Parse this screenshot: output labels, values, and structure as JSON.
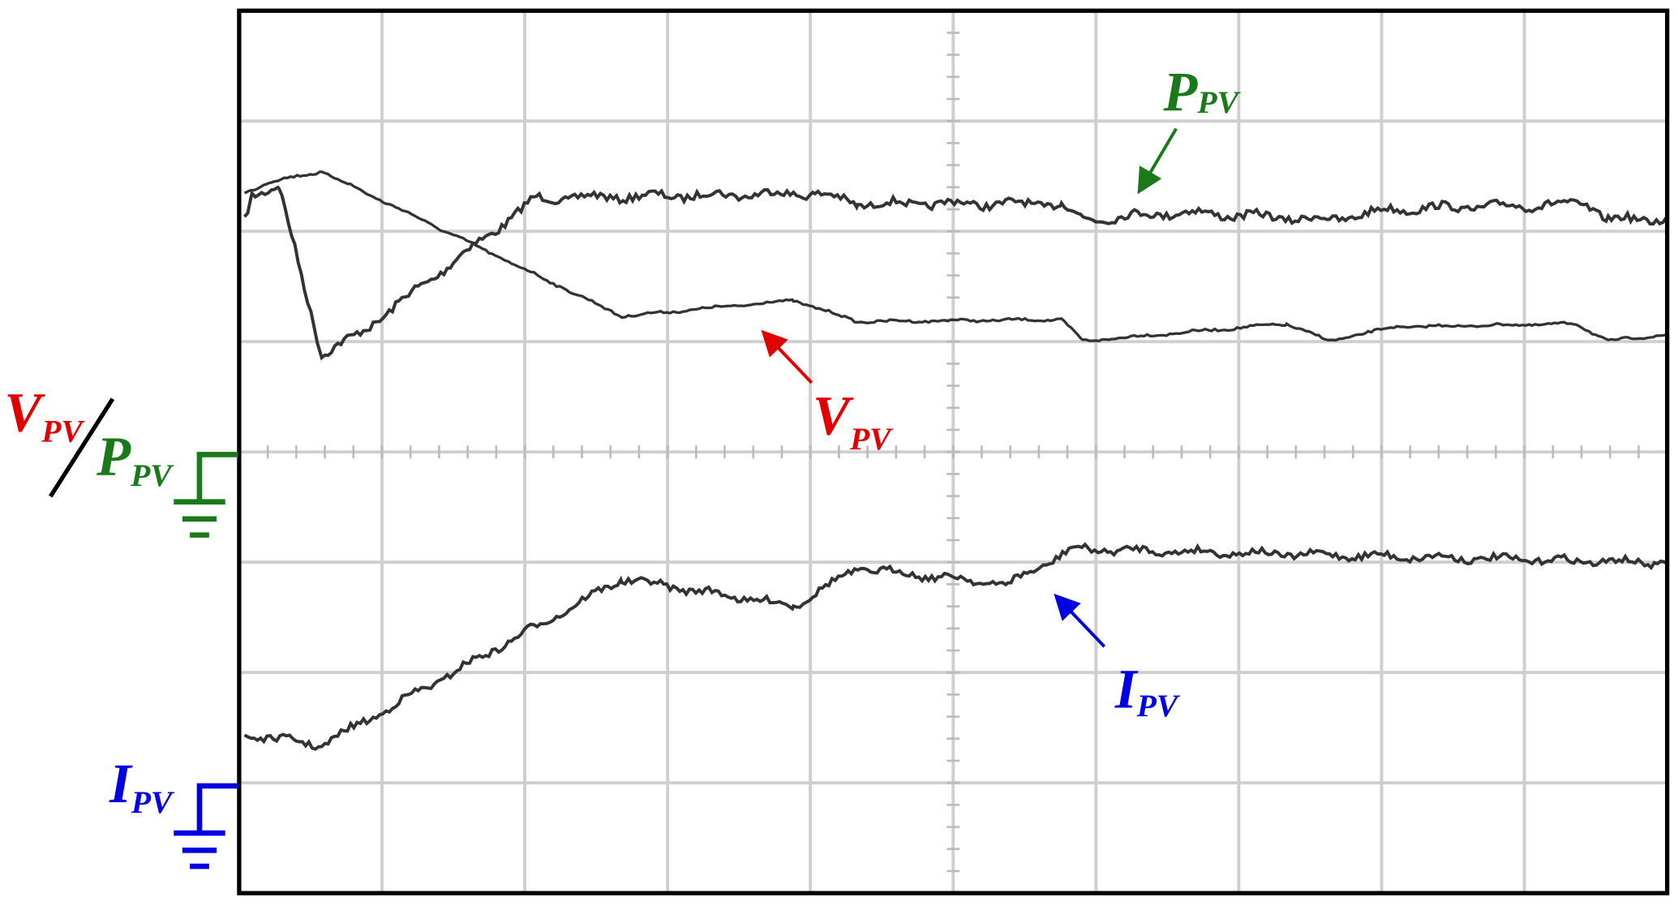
{
  "trace_labels": {
    "power": {
      "main": "P",
      "sub": "PV"
    },
    "voltage": {
      "main": "V",
      "sub": "PV"
    },
    "current": {
      "main": "I",
      "sub": "PV"
    }
  },
  "channel_labels": {
    "voltage": {
      "main": "V",
      "sub": "PV"
    },
    "power": {
      "main": "P",
      "sub": "PV"
    },
    "current": {
      "main": "I",
      "sub": "PV"
    }
  }
}
